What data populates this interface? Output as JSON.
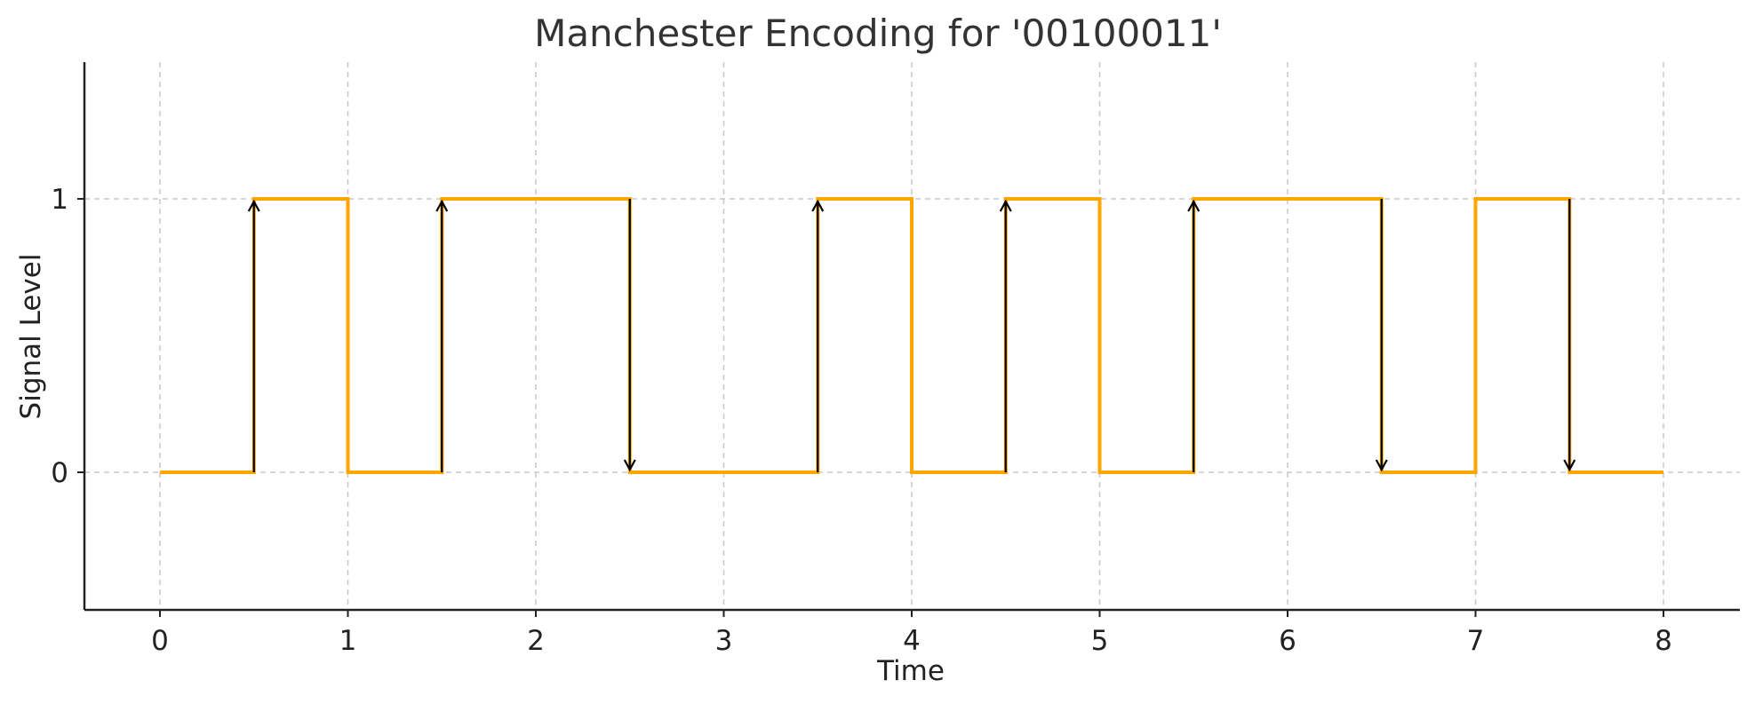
{
  "chart_data": {
    "type": "line",
    "title": "Manchester Encoding for '00100011'",
    "xlabel": "Time",
    "ylabel": "Signal Level",
    "xlim": [
      -0.4,
      8.4
    ],
    "ylim": [
      -0.5,
      1.5
    ],
    "xticks": [
      0,
      1,
      2,
      3,
      4,
      5,
      6,
      7,
      8
    ],
    "yticks": [
      0,
      1
    ],
    "grid": true,
    "step_line": {
      "color": "#FFA500",
      "points": [
        [
          0,
          0
        ],
        [
          0.5,
          0
        ],
        [
          0.5,
          1
        ],
        [
          1,
          1
        ],
        [
          1,
          0
        ],
        [
          1.5,
          0
        ],
        [
          1.5,
          1
        ],
        [
          2.5,
          1
        ],
        [
          2.5,
          0
        ],
        [
          3.5,
          0
        ],
        [
          3.5,
          1
        ],
        [
          4,
          1
        ],
        [
          4,
          0
        ],
        [
          4.5,
          0
        ],
        [
          4.5,
          1
        ],
        [
          5,
          1
        ],
        [
          5,
          0
        ],
        [
          5.5,
          0
        ],
        [
          5.5,
          1
        ],
        [
          6.5,
          1
        ],
        [
          6.5,
          0
        ],
        [
          7,
          0
        ],
        [
          7,
          1
        ],
        [
          7.5,
          1
        ],
        [
          7.5,
          0
        ],
        [
          8,
          0
        ]
      ]
    },
    "arrows": [
      {
        "x": 0.5,
        "direction": "up"
      },
      {
        "x": 1.5,
        "direction": "up"
      },
      {
        "x": 2.5,
        "direction": "down"
      },
      {
        "x": 3.5,
        "direction": "up"
      },
      {
        "x": 4.5,
        "direction": "up"
      },
      {
        "x": 5.5,
        "direction": "up"
      },
      {
        "x": 6.5,
        "direction": "down"
      },
      {
        "x": 7.5,
        "direction": "down"
      }
    ],
    "arrow_color": "#000000"
  }
}
